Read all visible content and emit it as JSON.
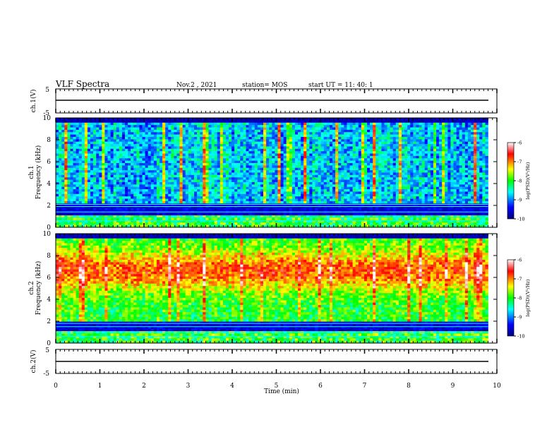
{
  "header": {
    "title": "VLF Spectra",
    "date": "Nov.2 , 2021",
    "station": "station= MOS",
    "start": "start UT = 11: 40: 1"
  },
  "panels": {
    "ch1_wave": {
      "ylabel": "ch.1(V)",
      "yticks": [
        "5",
        "-5"
      ]
    },
    "ch1_spec": {
      "ylabel": "ch.1\nFrequency (kHz)",
      "yticks": [
        "10",
        "8",
        "6",
        "4",
        "2",
        "0"
      ]
    },
    "ch2_spec": {
      "ylabel": "ch.2\nFrequency (kHz)",
      "yticks": [
        "10",
        "8",
        "6",
        "4",
        "2",
        "0"
      ]
    },
    "ch2_wave": {
      "ylabel": "ch.2(V)",
      "yticks": [
        "5",
        "-5"
      ]
    }
  },
  "colorbar": {
    "label": "log(PSD)(V²/Hz)",
    "ticks": [
      "-6",
      "-7",
      "-8",
      "-9",
      "-10"
    ],
    "colors": [
      "#000080",
      "#0000ff",
      "#00ffff",
      "#00ff00",
      "#ffff00",
      "#ff0000",
      "#ffffff"
    ]
  },
  "chart_data": [
    {
      "type": "line",
      "panel": "ch.1(V)",
      "x": [
        0,
        9.8
      ],
      "y": [
        0,
        0
      ],
      "xlim": [
        0,
        10
      ],
      "ylim": [
        -5,
        5
      ]
    },
    {
      "type": "heatmap",
      "panel": "ch.1",
      "xlim": [
        0,
        10
      ],
      "ylim": [
        0,
        10
      ],
      "data_extent_x": [
        0,
        9.8
      ],
      "zlim": [
        -10,
        -6
      ],
      "cable_lines_khz": [
        0.6,
        0.9,
        1.4,
        1.9,
        2.1
      ],
      "dominant_log_psd": -9
    },
    {
      "type": "heatmap",
      "panel": "ch.2",
      "xlim": [
        0,
        10
      ],
      "ylim": [
        0,
        10
      ],
      "data_extent_x": [
        0,
        9.8
      ],
      "zlim": [
        -10,
        -6
      ],
      "cable_lines_khz": [
        0.6,
        1.0,
        1.5,
        1.8
      ],
      "dominant_log_psd": -7
    },
    {
      "type": "line",
      "panel": "ch.2(V)",
      "x": [
        0,
        9.8
      ],
      "y": [
        0,
        0
      ],
      "xlim": [
        0,
        10
      ],
      "ylim": [
        -5,
        5
      ]
    }
  ],
  "xaxis": {
    "label": "Time (min)",
    "ticks": [
      "0",
      "1",
      "2",
      "3",
      "4",
      "5",
      "6",
      "7",
      "8",
      "9",
      "10"
    ]
  }
}
